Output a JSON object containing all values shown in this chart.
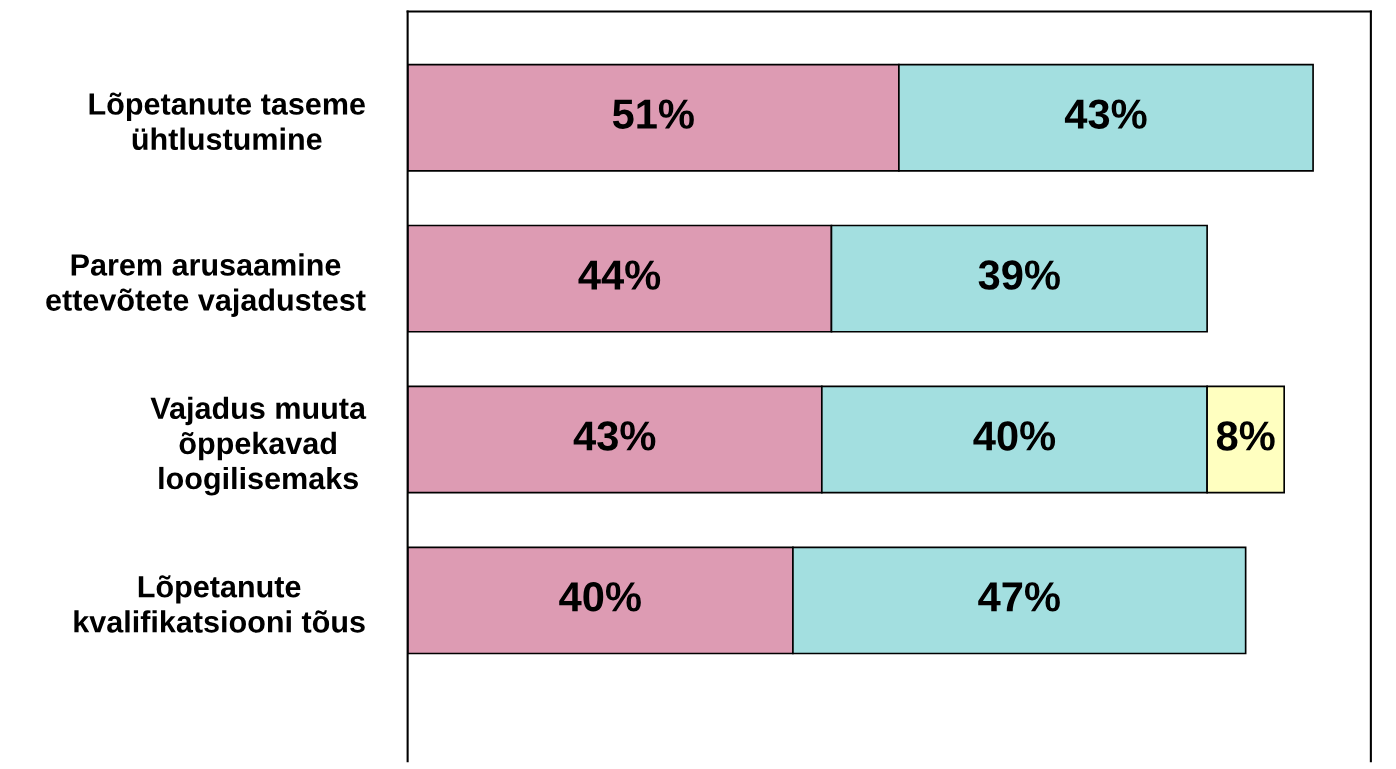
{
  "chart_data": {
    "type": "bar",
    "orientation": "horizontal",
    "stacked": true,
    "categories": [
      "Lõpetanute taseme\nühtlustumine",
      "Parem arusaamine\nettevõtete vajadustest",
      "Vajadus muuta\nõppekavad\nloogilisemaks",
      "Lõpetanute\nkvalifikatsiooni tõus"
    ],
    "xlim": [
      0,
      100
    ],
    "tick_labels": "y",
    "grid": false,
    "series": [
      {
        "color": "#dd9bb3",
        "values": [
          51,
          44,
          43,
          40
        ],
        "value_labels": [
          "51%",
          "44%",
          "43%",
          "40%"
        ]
      },
      {
        "color": "#a3dfe0",
        "values": [
          43,
          39,
          40,
          47
        ],
        "value_labels": [
          "43%",
          "39%",
          "40%",
          "47%"
        ]
      },
      {
        "color": "#ffffc0",
        "values": [
          null,
          null,
          8,
          null
        ],
        "value_labels": [
          null,
          null,
          "8%",
          null
        ]
      }
    ]
  }
}
